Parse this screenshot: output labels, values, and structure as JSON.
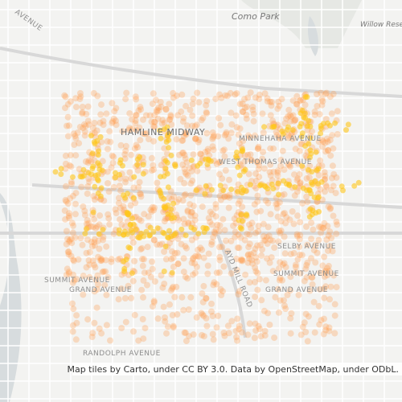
{
  "labels": [
    "AVENUE",
    "Como Park",
    "Willow Reserve",
    "HAMLINE MIDWAY",
    "MINNEHAHA AVENUE",
    "WEST THOMAS AVENUE",
    "SELBY AVENUE",
    "SUMMIT AVENUE",
    "GRAND AVENUE",
    "SUMMIT AVENUE",
    "GRAND AVENUE",
    "RANDOLPH AVENUE",
    "AYD MILL ROAD"
  ],
  "attribution": "Map tiles by Carto, under CC BY 3.0. Data by OpenStreetMap, under ODbL."
}
